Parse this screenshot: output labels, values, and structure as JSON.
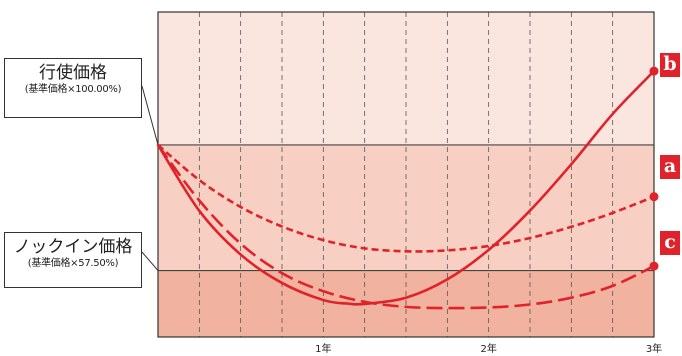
{
  "chart_data": {
    "type": "line",
    "title": "",
    "xlabel": "",
    "ylabel": "",
    "xlim": [
      0,
      3
    ],
    "ylim": [
      35,
      145
    ],
    "x_tick_labels": [
      {
        "x": 1,
        "label": "1年"
      },
      {
        "x": 2,
        "label": "2年"
      },
      {
        "x": 3,
        "label": "3年"
      }
    ],
    "reference_levels": [
      {
        "name": "行使価格",
        "sublabel": "(基準価格×100.00%)",
        "value": 100
      },
      {
        "name": "ノックイン価格",
        "sublabel": "(基準価格×57.50%)",
        "value": 57.5
      }
    ],
    "series": [
      {
        "name": "b",
        "style": "solid",
        "x": [
          0,
          0.25,
          0.5,
          0.75,
          1.0,
          1.15,
          1.25,
          1.5,
          1.75,
          2.0,
          2.25,
          2.5,
          2.75,
          3.0
        ],
        "values": [
          100,
          77.7,
          62.9,
          53.3,
          47.5,
          46.3,
          46.2,
          48.3,
          54.5,
          64.5,
          77.8,
          93.5,
          110.5,
          125
        ]
      },
      {
        "name": "a",
        "style": "short-dash",
        "x": [
          0,
          0.25,
          0.5,
          0.75,
          1.0,
          1.25,
          1.5,
          1.75,
          2.0,
          2.25,
          2.5,
          2.75,
          3.0
        ],
        "values": [
          100,
          88.1,
          79.0,
          72.4,
          67.8,
          65.0,
          64.0,
          64.3,
          65.8,
          68.5,
          72.3,
          77.0,
          82.5
        ]
      },
      {
        "name": "c",
        "style": "long-dash",
        "x": [
          0,
          0.25,
          0.5,
          0.75,
          1.0,
          1.25,
          1.5,
          1.75,
          2.0,
          2.25,
          2.5,
          2.75,
          3.0
        ],
        "values": [
          100,
          81.2,
          66.6,
          56.6,
          50.5,
          46.9,
          45.2,
          44.8,
          45.0,
          46.0,
          48.3,
          52.3,
          59.0
        ]
      }
    ],
    "grid": {
      "vertical": true,
      "style": "dashed",
      "divisions": 12
    },
    "colors": {
      "line": "#e0222a",
      "zone_top": "#fbe6df",
      "zone_mid": "#f7d0c3",
      "zone_bottom": "#f1b3a0",
      "badge": "#e0222a"
    }
  },
  "callouts": {
    "strike": {
      "main": "行使価格",
      "sub": "(基準価格×100.00%)"
    },
    "knock_in": {
      "main": "ノックイン価格",
      "sub": "(基準価格×57.50%)"
    }
  },
  "badges": {
    "b": "b",
    "a": "a",
    "c": "c"
  }
}
